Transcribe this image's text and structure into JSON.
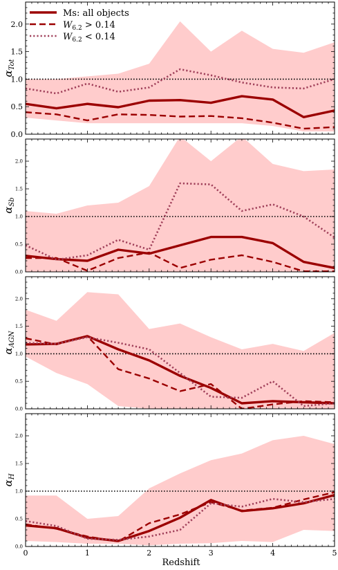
{
  "chart_data": {
    "type": "line",
    "xlabel": "Redshift",
    "x_ticks": [
      "0",
      "1",
      "2",
      "3",
      "4",
      "5"
    ],
    "xlim": [
      0,
      5
    ],
    "legend": {
      "placement": "top-left",
      "entries": [
        {
          "label": "Ms: all objects",
          "style": "solid"
        },
        {
          "label_main": "W",
          "label_sub": "6.2",
          "label_rest": " > 0.14",
          "style": "dashed"
        },
        {
          "label_main": "W",
          "label_sub": "6.2",
          "label_rest": " < 0.14",
          "style": "dotted"
        }
      ]
    },
    "colors": {
      "line": "#9b0000",
      "dotted_line": "#a0405a",
      "band": "#ffcccc",
      "reference": "#000000"
    },
    "x": [
      0,
      0.5,
      1,
      1.5,
      2,
      2.5,
      3,
      3.5,
      4,
      4.5,
      5
    ],
    "panels": [
      {
        "ylabel_main": "α",
        "ylabel_sub": "Tot",
        "ylim": [
          0,
          2.4
        ],
        "y_ticks": [
          "0.0",
          "0.5",
          "1.0",
          "1.5",
          "2.0"
        ],
        "reference_y": 1.0,
        "band_upper": [
          1.0,
          1.0,
          1.05,
          1.1,
          1.28,
          2.05,
          1.5,
          1.88,
          1.55,
          1.48,
          1.67
        ],
        "band_lower": [
          0.3,
          0.25,
          0.2,
          0.2,
          0.2,
          0.2,
          0.2,
          0.2,
          0.15,
          0.05,
          0.05
        ],
        "series": [
          {
            "style": "solid",
            "values": [
              0.55,
              0.47,
              0.55,
              0.49,
              0.61,
              0.62,
              0.57,
              0.69,
              0.63,
              0.31,
              0.43
            ]
          },
          {
            "style": "dashed",
            "values": [
              0.4,
              0.36,
              0.25,
              0.36,
              0.35,
              0.32,
              0.33,
              0.29,
              0.21,
              0.1,
              0.13
            ]
          },
          {
            "style": "dotted",
            "values": [
              0.83,
              0.74,
              0.92,
              0.77,
              0.85,
              1.18,
              1.07,
              0.94,
              0.85,
              0.83,
              1.0
            ]
          }
        ]
      },
      {
        "ylabel_main": "α",
        "ylabel_sub": "Sb",
        "ylim": [
          0,
          2.4
        ],
        "y_ticks": [
          "0.0",
          "0.5",
          "1.0",
          "1.5",
          "2.0"
        ],
        "reference_y": 1.0,
        "band_upper": [
          1.1,
          1.05,
          1.2,
          1.25,
          1.55,
          2.45,
          2.0,
          2.45,
          1.95,
          1.82,
          1.85
        ],
        "band_lower": [
          0.0,
          0.0,
          0.0,
          0.0,
          0.0,
          0.0,
          0.0,
          0.0,
          0.0,
          0.0,
          0.0
        ],
        "series": [
          {
            "style": "solid",
            "values": [
              0.29,
              0.23,
              0.2,
              0.4,
              0.33,
              0.48,
              0.63,
              0.63,
              0.52,
              0.18,
              0.07
            ]
          },
          {
            "style": "dashed",
            "values": [
              0.25,
              0.25,
              0.02,
              0.25,
              0.35,
              0.07,
              0.22,
              0.3,
              0.18,
              0.01,
              0.01
            ]
          },
          {
            "style": "dotted",
            "values": [
              0.48,
              0.22,
              0.3,
              0.58,
              0.4,
              1.6,
              1.58,
              1.1,
              1.22,
              1.0,
              0.62
            ]
          }
        ]
      },
      {
        "ylabel_main": "α",
        "ylabel_sub": "AGN",
        "ylim": [
          0,
          2.4
        ],
        "y_ticks": [
          "0.0",
          "0.5",
          "1.0",
          "1.5",
          "2.0"
        ],
        "reference_y": 1.0,
        "band_upper": [
          1.8,
          1.6,
          2.12,
          2.08,
          1.45,
          1.55,
          1.3,
          1.08,
          1.18,
          1.05,
          1.38
        ],
        "band_lower": [
          0.95,
          0.65,
          0.45,
          0.05,
          0.0,
          0.0,
          0.0,
          0.0,
          0.0,
          0.0,
          0.0
        ],
        "series": [
          {
            "style": "solid",
            "values": [
              1.17,
              1.18,
              1.32,
              1.08,
              0.88,
              0.6,
              0.38,
              0.1,
              0.14,
              0.12,
              0.1
            ]
          },
          {
            "style": "dashed",
            "values": [
              1.28,
              1.17,
              1.32,
              0.72,
              0.55,
              0.32,
              0.45,
              0.0,
              0.08,
              0.14,
              0.12
            ]
          },
          {
            "style": "dotted",
            "values": [
              1.2,
              1.18,
              1.3,
              1.2,
              1.08,
              0.65,
              0.22,
              0.2,
              0.5,
              0.05,
              0.1
            ]
          }
        ]
      },
      {
        "ylabel_main": "α",
        "ylabel_sub": "H",
        "ylim": [
          0,
          2.4
        ],
        "y_ticks": [
          "0.0",
          "0.5",
          "1.0",
          "1.5",
          "2.0"
        ],
        "reference_y": 1.0,
        "band_upper": [
          0.92,
          0.92,
          0.5,
          0.55,
          1.05,
          1.32,
          1.56,
          1.68,
          1.92,
          2.0,
          1.85
        ],
        "band_lower": [
          0.1,
          0.08,
          0.05,
          0.05,
          0.02,
          0.05,
          0.06,
          0.1,
          0.08,
          0.3,
          0.28
        ],
        "series": [
          {
            "style": "solid",
            "values": [
              0.38,
              0.33,
              0.16,
              0.1,
              0.28,
              0.52,
              0.84,
              0.64,
              0.69,
              0.78,
              0.93
            ]
          },
          {
            "style": "dashed",
            "values": [
              0.4,
              0.32,
              0.18,
              0.09,
              0.42,
              0.58,
              0.8,
              0.65,
              0.7,
              0.85,
              0.98
            ]
          },
          {
            "style": "dotted",
            "values": [
              0.46,
              0.37,
              0.14,
              0.12,
              0.18,
              0.3,
              0.78,
              0.72,
              0.86,
              0.8,
              0.86
            ]
          }
        ]
      }
    ]
  }
}
